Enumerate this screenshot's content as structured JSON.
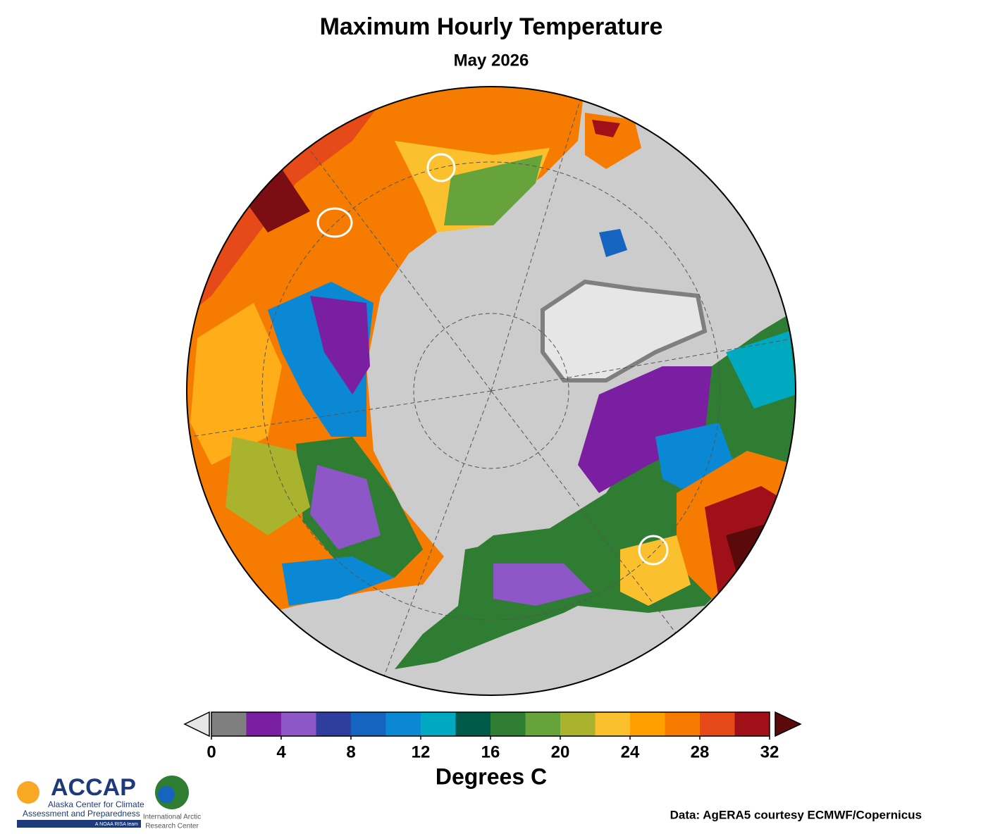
{
  "title": "Maximum Hourly Temperature",
  "subtitle": "May 2026",
  "colorbar": {
    "label": "Degrees C",
    "bounds": [
      0,
      2,
      4,
      6,
      8,
      10,
      12,
      14,
      16,
      18,
      20,
      22,
      24,
      26,
      28,
      30,
      32
    ],
    "colors": [
      "#7f7f7f",
      "#7b1fa2",
      "#8e57c8",
      "#2e3d9e",
      "#1565c0",
      "#0a88d4",
      "#00a8c0",
      "#005a4a",
      "#2e7d32",
      "#66a33a",
      "#aab32e",
      "#fbc02d",
      "#ff9f00",
      "#f57c00",
      "#e64a19",
      "#a01018"
    ],
    "under_color": "#e6e6e6",
    "over_color": "#5a0a0a",
    "ticks": [
      0,
      4,
      8,
      12,
      16,
      20,
      24,
      28,
      32
    ]
  },
  "logos": {
    "accap": {
      "name": "ACCAP",
      "line1": "Alaska Center for Climate",
      "line2": "Assessment and Preparedness",
      "tag": "A NOAA RISA team"
    },
    "iarc": {
      "line1": "International Arctic",
      "line2": "Research Center"
    }
  },
  "credit": "Data: AgERA5 courtesy ECMWF/Copernicus"
}
